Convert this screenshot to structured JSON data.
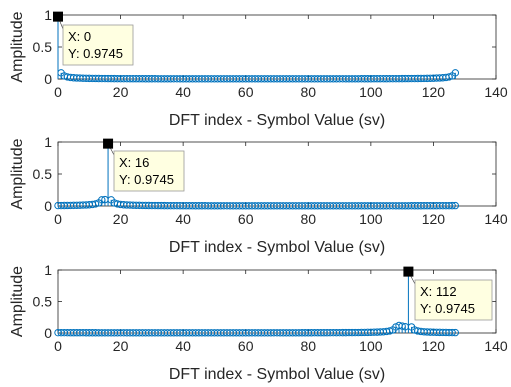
{
  "chart_data": [
    {
      "type": "stem",
      "xlabel": "DFT index - Symbol Value (sv)",
      "ylabel": "Amplitude",
      "xlim": [
        0,
        140
      ],
      "ylim": [
        0,
        1
      ],
      "xticks": [
        0,
        20,
        40,
        60,
        80,
        100,
        120,
        140
      ],
      "yticks": [
        0,
        0.5,
        1
      ],
      "peak_index": 0,
      "peak_value": 0.9745,
      "datatip": {
        "x_text": "X: 0",
        "y_text": "Y: 0.9745"
      },
      "values": [
        0.9745,
        0.0966,
        0.0483,
        0.0322,
        0.0242,
        0.0194,
        0.0162,
        0.0139,
        0.0122,
        0.0109,
        0.0099,
        0.009,
        0.0083,
        0.0077,
        0.0072,
        0.0068,
        0.0064,
        0.0061,
        0.0058,
        0.0055,
        0.0053,
        0.0051,
        0.0049,
        0.0047,
        0.0046,
        0.0044,
        0.0043,
        0.0042,
        0.0041,
        0.004,
        0.0039,
        0.0038,
        0.0037,
        0.0037,
        0.0036,
        0.0035,
        0.0035,
        0.0034,
        0.0034,
        0.0033,
        0.0033,
        0.0032,
        0.0032,
        0.0032,
        0.0031,
        0.0031,
        0.0031,
        0.003,
        0.003,
        0.003,
        0.003,
        0.003,
        0.003,
        0.0029,
        0.0029,
        0.0029,
        0.0029,
        0.0029,
        0.0029,
        0.0029,
        0.0029,
        0.0029,
        0.0029,
        0.0029,
        0.0029,
        0.0029,
        0.0029,
        0.0029,
        0.0029,
        0.0029,
        0.0029,
        0.0029,
        0.0029,
        0.0029,
        0.0029,
        0.0029,
        0.003,
        0.003,
        0.003,
        0.003,
        0.003,
        0.003,
        0.0031,
        0.0031,
        0.0031,
        0.0032,
        0.0032,
        0.0032,
        0.0033,
        0.0033,
        0.0034,
        0.0034,
        0.0035,
        0.0035,
        0.0036,
        0.0037,
        0.0037,
        0.0038,
        0.0039,
        0.004,
        0.0041,
        0.0042,
        0.0043,
        0.0044,
        0.0046,
        0.0047,
        0.0049,
        0.0051,
        0.0053,
        0.0055,
        0.0058,
        0.0061,
        0.0064,
        0.0068,
        0.0072,
        0.0077,
        0.0083,
        0.009,
        0.0099,
        0.0109,
        0.0122,
        0.0139,
        0.0162,
        0.0194,
        0.0242,
        0.0322,
        0.0483,
        0.0966
      ]
    },
    {
      "type": "stem",
      "xlabel": "DFT index - Symbol Value (sv)",
      "ylabel": "Amplitude",
      "xlim": [
        0,
        140
      ],
      "ylim": [
        0,
        1
      ],
      "xticks": [
        0,
        20,
        40,
        60,
        80,
        100,
        120,
        140
      ],
      "yticks": [
        0,
        0.5,
        1
      ],
      "peak_index": 16,
      "peak_value": 0.9745,
      "datatip": {
        "x_text": "X: 16",
        "y_text": "Y: 0.9745"
      },
      "values": [
        0.0068,
        0.0072,
        0.0077,
        0.0083,
        0.009,
        0.0099,
        0.0109,
        0.0122,
        0.0139,
        0.0162,
        0.0194,
        0.0242,
        0.0322,
        0.0483,
        0.0966,
        0.1,
        0.9745,
        0.0966,
        0.0483,
        0.0322,
        0.0242,
        0.0194,
        0.0162,
        0.0139,
        0.0122,
        0.0109,
        0.0099,
        0.009,
        0.0083,
        0.0077,
        0.0072,
        0.0068,
        0.0064,
        0.0061,
        0.0058,
        0.0055,
        0.0053,
        0.0051,
        0.0049,
        0.0047,
        0.0046,
        0.0044,
        0.0043,
        0.0042,
        0.0041,
        0.004,
        0.0039,
        0.0038,
        0.0037,
        0.0037,
        0.0036,
        0.0035,
        0.0035,
        0.0034,
        0.0034,
        0.0033,
        0.0033,
        0.0032,
        0.0032,
        0.0032,
        0.0031,
        0.0031,
        0.0031,
        0.003,
        0.003,
        0.003,
        0.003,
        0.003,
        0.003,
        0.0029,
        0.0029,
        0.0029,
        0.0029,
        0.0029,
        0.0029,
        0.0029,
        0.0029,
        0.0029,
        0.0029,
        0.0029,
        0.0029,
        0.0029,
        0.0029,
        0.0029,
        0.0029,
        0.0029,
        0.0029,
        0.0029,
        0.0029,
        0.0029,
        0.0029,
        0.0029,
        0.003,
        0.003,
        0.003,
        0.003,
        0.003,
        0.003,
        0.0031,
        0.0031,
        0.0031,
        0.0032,
        0.0032,
        0.0032,
        0.0033,
        0.0033,
        0.0034,
        0.0034,
        0.0035,
        0.0035,
        0.0036,
        0.0037,
        0.0037,
        0.0038,
        0.0039,
        0.004,
        0.0041,
        0.0042,
        0.0043,
        0.0044,
        0.0046,
        0.0047,
        0.0049,
        0.0051,
        0.0053,
        0.0055,
        0.0058,
        0.0061
      ]
    },
    {
      "type": "stem",
      "xlabel": "DFT index - Symbol Value (sv)",
      "ylabel": "Amplitude",
      "xlim": [
        0,
        140
      ],
      "ylim": [
        0,
        1
      ],
      "xticks": [
        0,
        20,
        40,
        60,
        80,
        100,
        120,
        140
      ],
      "yticks": [
        0,
        0.5,
        1
      ],
      "peak_index": 112,
      "peak_value": 0.9745,
      "datatip": {
        "x_text": "X: 112",
        "y_text": "Y: 0.9745"
      },
      "values": [
        0.0055,
        0.0053,
        0.0051,
        0.0049,
        0.0047,
        0.0046,
        0.0044,
        0.0043,
        0.0042,
        0.0041,
        0.004,
        0.0039,
        0.0038,
        0.0037,
        0.0037,
        0.0036,
        0.0035,
        0.0035,
        0.0034,
        0.0034,
        0.0033,
        0.0033,
        0.0032,
        0.0032,
        0.0032,
        0.0031,
        0.0031,
        0.0031,
        0.003,
        0.003,
        0.003,
        0.003,
        0.003,
        0.003,
        0.0029,
        0.0029,
        0.0029,
        0.0029,
        0.0029,
        0.0029,
        0.0029,
        0.0029,
        0.0029,
        0.0029,
        0.0029,
        0.0029,
        0.0029,
        0.0029,
        0.0029,
        0.0029,
        0.0029,
        0.0029,
        0.0029,
        0.0029,
        0.0029,
        0.0029,
        0.0029,
        0.003,
        0.003,
        0.003,
        0.003,
        0.003,
        0.003,
        0.0031,
        0.0031,
        0.0031,
        0.0032,
        0.0032,
        0.0032,
        0.0033,
        0.0033,
        0.0034,
        0.0034,
        0.0035,
        0.0035,
        0.0036,
        0.0037,
        0.0037,
        0.0038,
        0.0039,
        0.004,
        0.0041,
        0.0042,
        0.0043,
        0.0044,
        0.0046,
        0.0047,
        0.0049,
        0.0051,
        0.0053,
        0.0055,
        0.0058,
        0.0061,
        0.0064,
        0.0068,
        0.0072,
        0.0077,
        0.0083,
        0.009,
        0.0099,
        0.0109,
        0.0122,
        0.0139,
        0.0162,
        0.0194,
        0.0242,
        0.0322,
        0.0483,
        0.0966,
        0.12,
        0.11,
        0.1,
        0.9745,
        0.0966,
        0.0483,
        0.0322,
        0.0242,
        0.0194,
        0.0162,
        0.0139,
        0.0122,
        0.0109,
        0.0099,
        0.009,
        0.0083,
        0.0077,
        0.0072,
        0.0068
      ]
    }
  ],
  "colors": {
    "stem": "#0072bd",
    "axis": "#262626",
    "datatip_bg": "#ffffe1",
    "datatip_border": "#999999",
    "datatip_marker": "#000000"
  }
}
